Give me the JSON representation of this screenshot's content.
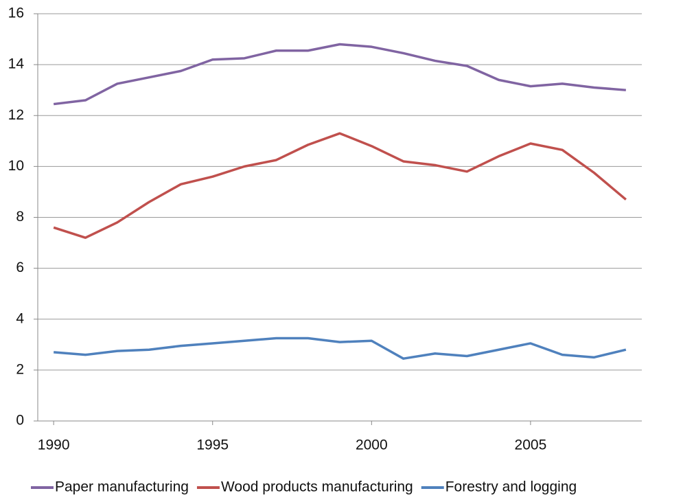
{
  "chart_data": {
    "type": "line",
    "x": [
      1990,
      1991,
      1992,
      1993,
      1994,
      1995,
      1996,
      1997,
      1998,
      1999,
      2000,
      2001,
      2002,
      2003,
      2004,
      2005,
      2006,
      2007,
      2008
    ],
    "series": [
      {
        "name": "Paper manufacturing",
        "color": "#8064a2",
        "values": [
          12.45,
          12.6,
          13.25,
          13.5,
          13.75,
          14.2,
          14.25,
          14.55,
          14.55,
          14.8,
          14.7,
          14.45,
          14.15,
          13.95,
          13.4,
          13.15,
          13.25,
          13.1,
          13.0
        ]
      },
      {
        "name": "Wood products manufacturing",
        "color": "#c0504d",
        "values": [
          7.6,
          7.2,
          7.8,
          8.6,
          9.3,
          9.6,
          10.0,
          10.25,
          10.85,
          11.3,
          10.8,
          10.2,
          10.05,
          9.8,
          10.4,
          10.9,
          10.65,
          9.75,
          8.7
        ]
      },
      {
        "name": "Forestry and logging",
        "color": "#4f81bd",
        "values": [
          2.7,
          2.6,
          2.75,
          2.8,
          2.95,
          3.05,
          3.15,
          3.25,
          3.25,
          3.1,
          3.15,
          2.45,
          2.65,
          2.55,
          2.8,
          3.05,
          2.6,
          2.5,
          2.8
        ]
      }
    ],
    "xlim": [
      1989.5,
      2008.5
    ],
    "xticks": [
      1990,
      1995,
      2000,
      2005
    ],
    "ylim": [
      0,
      16
    ],
    "yticks": [
      0,
      2,
      4,
      6,
      8,
      10,
      12,
      14,
      16
    ],
    "grid": true,
    "legend": "bottom"
  }
}
